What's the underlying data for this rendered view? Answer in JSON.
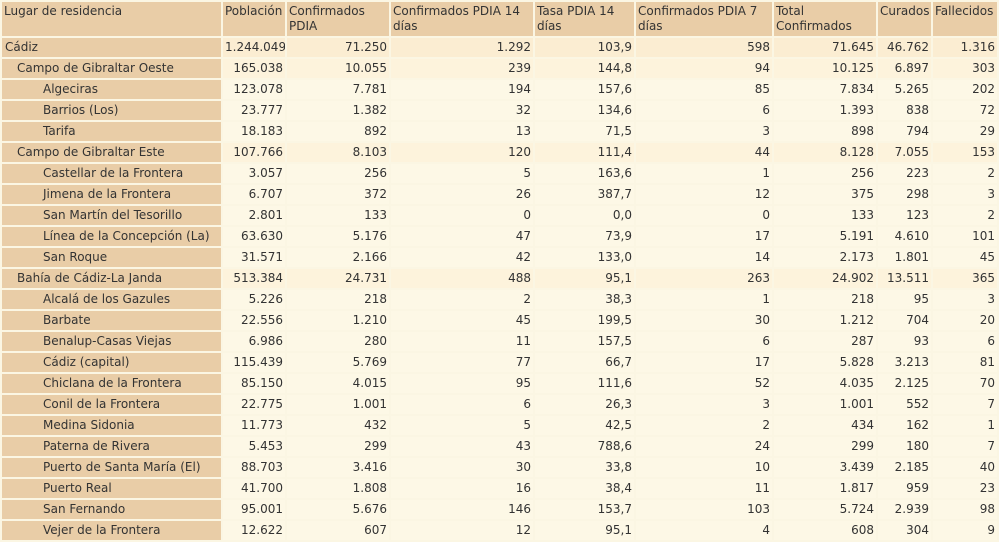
{
  "headers": [
    "Lugar de residencia",
    "Población",
    "Confirmados PDIA",
    "Confirmados PDIA 14 días",
    "Tasa PDIA 14 días",
    "Confirmados PDIA 7 días",
    "Total Confirmados",
    "Curados",
    "Fallecidos"
  ],
  "rows": [
    {
      "level": 0,
      "cells": [
        "Cádiz",
        "1.244.049",
        "71.250",
        "1.292",
        "103,9",
        "598",
        "71.645",
        "46.762",
        "1.316"
      ]
    },
    {
      "level": 1,
      "cells": [
        "Campo de Gibraltar Oeste",
        "165.038",
        "10.055",
        "239",
        "144,8",
        "94",
        "10.125",
        "6.897",
        "303"
      ]
    },
    {
      "level": 2,
      "cells": [
        "Algeciras",
        "123.078",
        "7.781",
        "194",
        "157,6",
        "85",
        "7.834",
        "5.265",
        "202"
      ]
    },
    {
      "level": 2,
      "cells": [
        "Barrios (Los)",
        "23.777",
        "1.382",
        "32",
        "134,6",
        "6",
        "1.393",
        "838",
        "72"
      ]
    },
    {
      "level": 2,
      "cells": [
        "Tarifa",
        "18.183",
        "892",
        "13",
        "71,5",
        "3",
        "898",
        "794",
        "29"
      ]
    },
    {
      "level": 1,
      "cells": [
        "Campo de Gibraltar Este",
        "107.766",
        "8.103",
        "120",
        "111,4",
        "44",
        "8.128",
        "7.055",
        "153"
      ]
    },
    {
      "level": 2,
      "cells": [
        "Castellar de la Frontera",
        "3.057",
        "256",
        "5",
        "163,6",
        "1",
        "256",
        "223",
        "2"
      ]
    },
    {
      "level": 2,
      "cells": [
        "Jimena de la Frontera",
        "6.707",
        "372",
        "26",
        "387,7",
        "12",
        "375",
        "298",
        "3"
      ]
    },
    {
      "level": 2,
      "cells": [
        "San Martín del Tesorillo",
        "2.801",
        "133",
        "0",
        "0,0",
        "0",
        "133",
        "123",
        "2"
      ]
    },
    {
      "level": 2,
      "cells": [
        "Línea de la Concepción (La)",
        "63.630",
        "5.176",
        "47",
        "73,9",
        "17",
        "5.191",
        "4.610",
        "101"
      ]
    },
    {
      "level": 2,
      "cells": [
        "San Roque",
        "31.571",
        "2.166",
        "42",
        "133,0",
        "14",
        "2.173",
        "1.801",
        "45"
      ]
    },
    {
      "level": 1,
      "cells": [
        "Bahía de Cádiz-La Janda",
        "513.384",
        "24.731",
        "488",
        "95,1",
        "263",
        "24.902",
        "13.511",
        "365"
      ]
    },
    {
      "level": 2,
      "cells": [
        "Alcalá de los Gazules",
        "5.226",
        "218",
        "2",
        "38,3",
        "1",
        "218",
        "95",
        "3"
      ]
    },
    {
      "level": 2,
      "cells": [
        "Barbate",
        "22.556",
        "1.210",
        "45",
        "199,5",
        "30",
        "1.212",
        "704",
        "20"
      ]
    },
    {
      "level": 2,
      "cells": [
        "Benalup-Casas Viejas",
        "6.986",
        "280",
        "11",
        "157,5",
        "6",
        "287",
        "93",
        "6"
      ]
    },
    {
      "level": 2,
      "cells": [
        "Cádiz (capital)",
        "115.439",
        "5.769",
        "77",
        "66,7",
        "17",
        "5.828",
        "3.213",
        "81"
      ]
    },
    {
      "level": 2,
      "cells": [
        "Chiclana de la Frontera",
        "85.150",
        "4.015",
        "95",
        "111,6",
        "52",
        "4.035",
        "2.125",
        "70"
      ]
    },
    {
      "level": 2,
      "cells": [
        "Conil de la Frontera",
        "22.775",
        "1.001",
        "6",
        "26,3",
        "3",
        "1.001",
        "552",
        "7"
      ]
    },
    {
      "level": 2,
      "cells": [
        "Medina Sidonia",
        "11.773",
        "432",
        "5",
        "42,5",
        "2",
        "434",
        "162",
        "1"
      ]
    },
    {
      "level": 2,
      "cells": [
        "Paterna de Rivera",
        "5.453",
        "299",
        "43",
        "788,6",
        "24",
        "299",
        "180",
        "7"
      ]
    },
    {
      "level": 2,
      "cells": [
        "Puerto de Santa María (El)",
        "88.703",
        "3.416",
        "30",
        "33,8",
        "10",
        "3.439",
        "2.185",
        "40"
      ]
    },
    {
      "level": 2,
      "cells": [
        "Puerto Real",
        "41.700",
        "1.808",
        "16",
        "38,4",
        "11",
        "1.817",
        "959",
        "23"
      ]
    },
    {
      "level": 2,
      "cells": [
        "San Fernando",
        "95.001",
        "5.676",
        "146",
        "153,7",
        "103",
        "5.724",
        "2.939",
        "98"
      ]
    },
    {
      "level": 2,
      "cells": [
        "Vejer de la Frontera",
        "12.622",
        "607",
        "12",
        "95,1",
        "4",
        "608",
        "304",
        "9"
      ]
    }
  ]
}
